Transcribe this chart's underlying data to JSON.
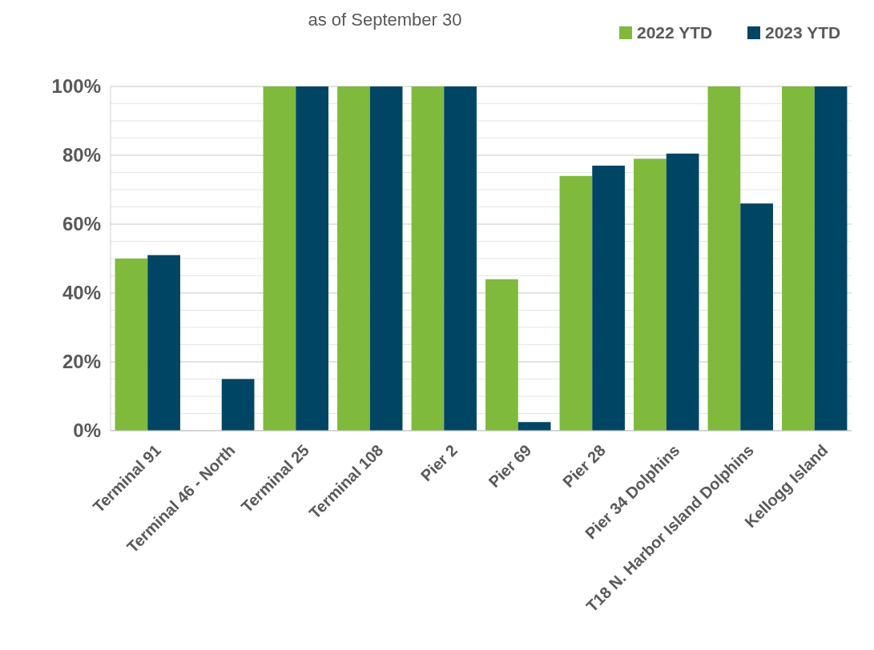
{
  "chart_data": {
    "type": "bar",
    "title": "as of September 30",
    "categories": [
      "Terminal 91",
      "Terminal 46 - North",
      "Terminal 25",
      "Terminal 108",
      "Pier 2",
      "Pier 69",
      "Pier 28",
      "Pier 34 Dolphins",
      "T18 N. Harbor Island Dolphins",
      "Kellogg Island"
    ],
    "series": [
      {
        "name": "2022 YTD",
        "color": "#7fba3c",
        "values": [
          50,
          0,
          100,
          100,
          100,
          44,
          74,
          79,
          100,
          100
        ]
      },
      {
        "name": "2023 YTD",
        "color": "#004563",
        "values": [
          51,
          15,
          100,
          100,
          100,
          2.5,
          77,
          80.5,
          66,
          100
        ]
      }
    ],
    "ylim": [
      0,
      100
    ],
    "yticks": [
      {
        "value": 0,
        "label": "0%"
      },
      {
        "value": 5,
        "label": null
      },
      {
        "value": 10,
        "label": null
      },
      {
        "value": 15,
        "label": null
      },
      {
        "value": 20,
        "label": "20%"
      },
      {
        "value": 25,
        "label": null
      },
      {
        "value": 30,
        "label": null
      },
      {
        "value": 35,
        "label": null
      },
      {
        "value": 40,
        "label": "40%"
      },
      {
        "value": 45,
        "label": null
      },
      {
        "value": 50,
        "label": null
      },
      {
        "value": 55,
        "label": null
      },
      {
        "value": 60,
        "label": "60%"
      },
      {
        "value": 65,
        "label": null
      },
      {
        "value": 70,
        "label": null
      },
      {
        "value": 75,
        "label": null
      },
      {
        "value": 80,
        "label": "80%"
      },
      {
        "value": 85,
        "label": null
      },
      {
        "value": 90,
        "label": null
      },
      {
        "value": 95,
        "label": null
      },
      {
        "value": 100,
        "label": "100%"
      }
    ],
    "grid": "y",
    "legend": "top right"
  }
}
